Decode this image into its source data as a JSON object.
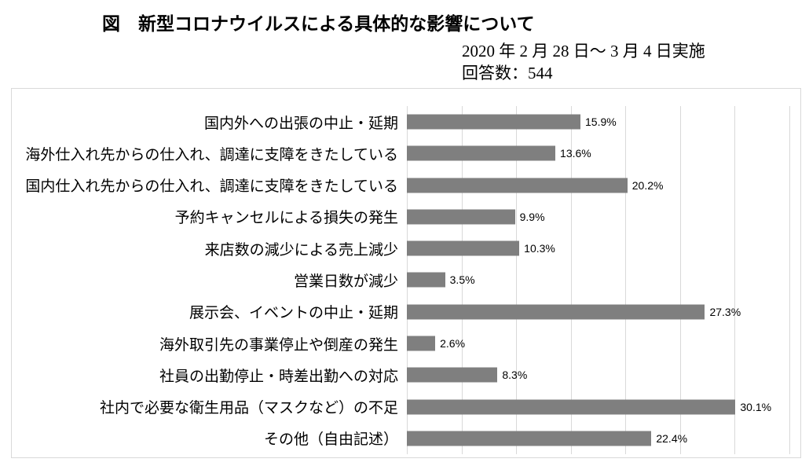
{
  "header": {
    "title": "図　新型コロナウイルスによる具体的な影響について",
    "survey_period": "2020 年 2 月 28 日～ 3 月 4 日実施",
    "respondents": "回答数：544"
  },
  "chart_data": {
    "type": "bar",
    "orientation": "horizontal",
    "title": "図　新型コロナウイルスによる具体的な影響について",
    "subtitle": "2020 年 2 月 28 日～ 3 月 4 日実施",
    "respondents_label": "回答数：544",
    "categories": [
      "国内外への出張の中止・延期",
      "海外仕入れ先からの仕入れ、調達に支障をきたしている",
      "国内仕入れ先からの仕入れ、調達に支障をきたしている",
      "予約キャンセルによる損失の発生",
      "来店数の減少による売上減少",
      "営業日数が減少",
      "展示会、イベントの中止・延期",
      "海外取引先の事業停止や倒産の発生",
      "社員の出勤停止・時差出勤への対応",
      "社内で必要な衛生用品（マスクなど）の不足",
      "その他（自由記述）"
    ],
    "values": [
      15.9,
      13.6,
      20.2,
      9.9,
      10.3,
      3.5,
      27.3,
      2.6,
      8.3,
      30.1,
      22.4
    ],
    "value_labels": [
      "15.9%",
      "13.6%",
      "20.2%",
      "9.9%",
      "10.3%",
      "3.5%",
      "27.3%",
      "2.6%",
      "8.3%",
      "30.1%",
      "22.4%"
    ],
    "xlabel": "",
    "ylabel": "",
    "xlim": [
      0,
      36
    ],
    "gridline_interval_percent": 5,
    "grid": true,
    "legend": false,
    "colors": {
      "bar": "#7f7f7f",
      "gridline": "#d9d9d9",
      "chart_border": "#d9d9d9",
      "text": "#000000",
      "background": "#ffffff"
    }
  }
}
